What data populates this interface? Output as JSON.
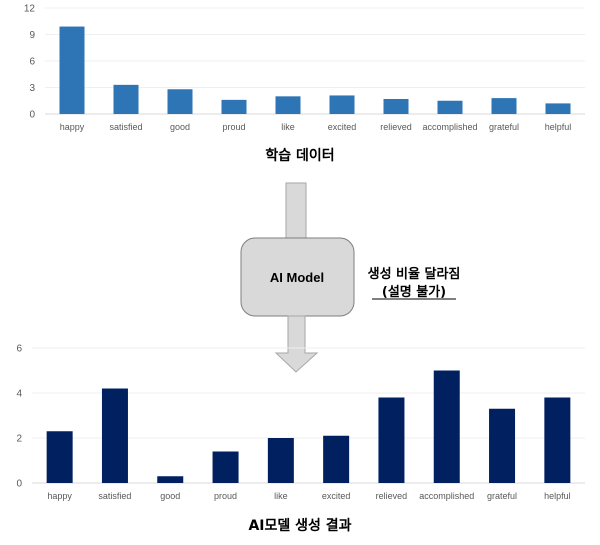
{
  "chart_data": [
    {
      "type": "bar",
      "title": "학습 데이터",
      "categories": [
        "happy",
        "satisfied",
        "good",
        "proud",
        "like",
        "excited",
        "relieved",
        "accomplished",
        "grateful",
        "helpful"
      ],
      "values": [
        9.9,
        3.3,
        2.8,
        1.6,
        2.0,
        2.1,
        1.7,
        1.5,
        1.8,
        1.2
      ],
      "ylim": [
        0,
        12
      ],
      "yticks": [
        0,
        3,
        6,
        9,
        12
      ],
      "color": "#2e75b6",
      "grid": true
    },
    {
      "type": "bar",
      "title": "AI모델 생성 결과",
      "categories": [
        "happy",
        "satisfied",
        "good",
        "proud",
        "like",
        "excited",
        "relieved",
        "accomplished",
        "grateful",
        "helpful"
      ],
      "values": [
        2.3,
        4.2,
        0.3,
        1.4,
        2.0,
        2.1,
        3.8,
        5.0,
        3.3,
        3.8
      ],
      "ylim": [
        0,
        6
      ],
      "yticks": [
        0,
        2,
        4,
        6
      ],
      "color": "#002060",
      "grid": true
    }
  ],
  "diagram": {
    "model_label": "AI Model",
    "note_line1": "생성 비율 달라짐",
    "note_line2": "(설명 불가)"
  }
}
